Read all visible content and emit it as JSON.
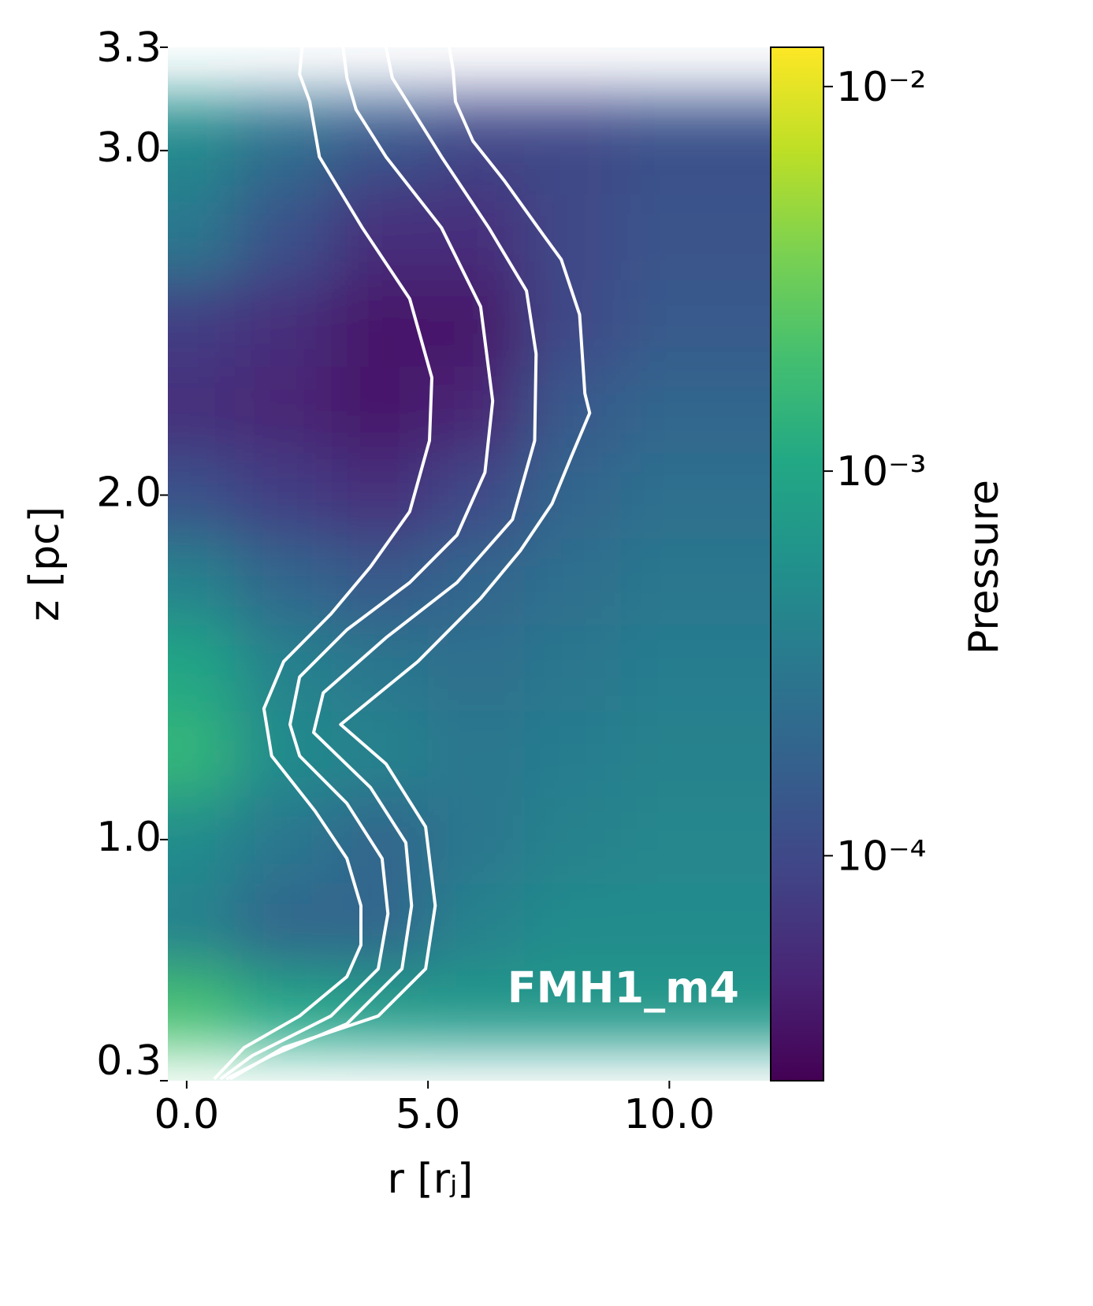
{
  "chart_data": {
    "type": "heatmap",
    "xlabel": "r [rⱼ]",
    "ylabel": "z [pc]",
    "annotation": "FMH1_m4",
    "xlim": [
      -0.39,
      12.1
    ],
    "ylim": [
      0.3,
      3.3
    ],
    "xticks": [
      {
        "value": 0,
        "label": "0.0"
      },
      {
        "value": 5,
        "label": "5.0"
      },
      {
        "value": 10,
        "label": "10.0"
      }
    ],
    "yticks": [
      0.3,
      {
        "value": 1,
        "label": "1.0"
      },
      {
        "value": 2,
        "label": "2.0"
      },
      {
        "value": 3,
        "label": "3.0"
      },
      3.3
    ],
    "colormap": "viridis",
    "colorbar": {
      "label": "Pressure",
      "log_scale": true,
      "lim": [
        2.6e-05,
        0.01265
      ],
      "ticks": [
        {
          "value": 0.0001,
          "label": "10⁻⁴"
        },
        {
          "value": 0.001,
          "label": "10⁻³"
        },
        {
          "value": 0.01,
          "label": "10⁻²"
        }
      ]
    },
    "heatmap": {
      "x": [
        0,
        2,
        4,
        6,
        8,
        10,
        12
      ],
      "y": [
        0.3,
        0.5,
        0.75,
        1.0,
        1.25,
        1.5,
        1.75,
        2.0,
        2.25,
        2.5,
        2.75,
        3.0,
        3.3
      ],
      "values": [
        [
          0.01,
          0.005,
          0.005,
          0.005,
          0.005,
          0.005,
          0.005
        ],
        [
          0.002,
          0.001,
          0.0008,
          0.0007,
          0.0007,
          0.0007,
          0.0007
        ],
        [
          0.0004,
          0.0002,
          0.0002,
          0.0004,
          0.0005,
          0.0005,
          0.0005
        ],
        [
          0.0005,
          0.0003,
          0.0002,
          0.0003,
          0.0004,
          0.00045,
          0.00045
        ],
        [
          0.0015,
          0.0005,
          0.0004,
          0.0003,
          0.00035,
          0.0004,
          0.0004
        ],
        [
          0.001,
          0.0004,
          0.0003,
          0.00025,
          0.0003,
          0.00035,
          0.00035
        ],
        [
          0.0004,
          0.0002,
          0.00015,
          0.0002,
          0.00025,
          0.0003,
          0.0003
        ],
        [
          0.00012,
          8e-05,
          6e-05,
          0.0001,
          0.0002,
          0.00025,
          0.00025
        ],
        [
          6e-05,
          5e-05,
          4e-05,
          5e-05,
          0.00015,
          0.0002,
          0.0002
        ],
        [
          8e-05,
          6e-05,
          4e-05,
          4e-05,
          0.0001,
          0.00015,
          0.00015
        ],
        [
          0.0003,
          0.00012,
          6e-05,
          6e-05,
          0.0001,
          0.00013,
          0.00013
        ],
        [
          0.0004,
          0.0002,
          0.0001,
          8e-05,
          0.0001,
          0.00012,
          0.00012
        ],
        [
          0.0005,
          0.00025,
          0.00015,
          0.0001,
          0.0001,
          0.00012,
          0.00012
        ]
      ]
    },
    "series": [
      {
        "color": "#ffffff",
        "x": [
          2.39,
          2.34,
          2.55,
          2.75,
          3.64,
          4.62,
          5.08,
          5.03,
          4.62,
          3.81,
          2.99,
          2.01,
          1.6,
          1.76,
          2.66,
          3.32,
          3.61,
          3.61,
          3.32,
          2.34,
          1.19,
          0.57
        ],
        "values": [
          3.3,
          3.222,
          3.142,
          2.982,
          2.776,
          2.57,
          2.341,
          2.158,
          1.952,
          1.792,
          1.655,
          1.517,
          1.38,
          1.243,
          1.083,
          0.945,
          0.808,
          0.694,
          0.602,
          0.488,
          0.396,
          0.305
        ]
      },
      {
        "color": "#ffffff",
        "x": [
          3.24,
          3.32,
          3.51,
          4.13,
          5.28,
          6.09,
          6.34,
          6.18,
          5.6,
          4.62,
          3.32,
          2.34,
          2.14,
          2.34,
          3.32,
          4.05,
          4.17,
          3.97,
          2.99,
          1.36,
          0.7
        ],
        "values": [
          3.3,
          3.211,
          3.119,
          2.982,
          2.776,
          2.547,
          2.273,
          2.066,
          1.884,
          1.746,
          1.609,
          1.472,
          1.334,
          1.243,
          1.105,
          0.945,
          0.785,
          0.625,
          0.488,
          0.373,
          0.305
        ]
      },
      {
        "color": "#ffffff",
        "x": [
          4.13,
          4.26,
          5.28,
          6.26,
          7.04,
          7.24,
          7.21,
          6.75,
          5.6,
          4.13,
          2.83,
          2.63,
          3.81,
          4.54,
          4.66,
          4.46,
          3.32,
          1.76,
          0.82
        ],
        "values": [
          3.3,
          3.211,
          2.982,
          2.776,
          2.593,
          2.41,
          2.158,
          1.929,
          1.746,
          1.586,
          1.426,
          1.311,
          1.151,
          0.991,
          0.808,
          0.625,
          0.465,
          0.373,
          0.305
        ]
      },
      {
        "color": "#ffffff",
        "x": [
          5.44,
          5.52,
          5.57,
          5.93,
          6.58,
          7.4,
          7.76,
          8.14,
          8.25,
          8.35,
          7.97,
          7.57,
          6.91,
          6.09,
          4.79,
          3.19,
          4.13,
          4.95,
          5.15,
          4.95,
          3.97,
          2.01,
          0.9
        ],
        "values": [
          3.3,
          3.234,
          3.142,
          3.028,
          2.913,
          2.753,
          2.684,
          2.524,
          2.295,
          2.238,
          2.112,
          1.975,
          1.838,
          1.7,
          1.517,
          1.334,
          1.22,
          1.037,
          0.808,
          0.625,
          0.488,
          0.396,
          0.305
        ]
      }
    ]
  }
}
